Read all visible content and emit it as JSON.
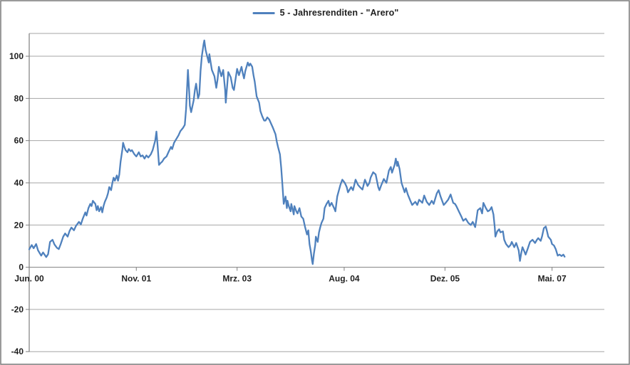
{
  "chart_data": {
    "type": "line",
    "title": "",
    "legend_label": "5 - Jahresrenditen - \"Arero\"",
    "legend_position": "top-center",
    "x_unit": "months since Jun 2000",
    "grid": true,
    "line_color": "#4f81bd",
    "grid_color": "#a6a6a6",
    "axis_color": "#7f7f7f",
    "border_color": "#818181",
    "text_color": "#1f1f1f",
    "ylim": [
      -40,
      110.8
    ],
    "xlim": [
      0,
      91.3
    ],
    "y_ticks": [
      100,
      80,
      60,
      40,
      20,
      0,
      -20,
      -40
    ],
    "x_ticks": [
      {
        "m": 0,
        "label": "Jun. 00"
      },
      {
        "m": 17,
        "label": "Nov. 01"
      },
      {
        "m": 33,
        "label": "Mrz. 03"
      },
      {
        "m": 50,
        "label": "Aug. 04"
      },
      {
        "m": 66,
        "label": "Dez. 05"
      },
      {
        "m": 83,
        "label": "Mai. 07"
      }
    ],
    "series": [
      {
        "name": "5 - Jahresrenditen - \"Arero\"",
        "points": [
          [
            0,
            8.5
          ],
          [
            0.4,
            10.5
          ],
          [
            0.7,
            9
          ],
          [
            1.1,
            11
          ],
          [
            1.4,
            8
          ],
          [
            1.9,
            5.5
          ],
          [
            2.2,
            7
          ],
          [
            2.7,
            4.8
          ],
          [
            3,
            6.2
          ],
          [
            3.3,
            12
          ],
          [
            3.7,
            13
          ],
          [
            4,
            10.8
          ],
          [
            4.4,
            9.2
          ],
          [
            4.7,
            8.6
          ],
          [
            5,
            11
          ],
          [
            5.4,
            14.5
          ],
          [
            5.7,
            16
          ],
          [
            6.1,
            14.5
          ],
          [
            6.4,
            17.2
          ],
          [
            6.7,
            18.8
          ],
          [
            7.1,
            17.5
          ],
          [
            7.4,
            19.5
          ],
          [
            7.9,
            21.5
          ],
          [
            8.2,
            20.3
          ],
          [
            8.5,
            23
          ],
          [
            8.9,
            26
          ],
          [
            9.1,
            24.5
          ],
          [
            9.4,
            28
          ],
          [
            9.7,
            30
          ],
          [
            9.9,
            29
          ],
          [
            10.1,
            31.5
          ],
          [
            10.5,
            30
          ],
          [
            10.7,
            27
          ],
          [
            10.9,
            29
          ],
          [
            11.1,
            26.5
          ],
          [
            11.4,
            28.5
          ],
          [
            11.6,
            26
          ],
          [
            11.8,
            29
          ],
          [
            12,
            31
          ],
          [
            12.3,
            33
          ],
          [
            12.5,
            35
          ],
          [
            12.7,
            38
          ],
          [
            13,
            36.5
          ],
          [
            13.2,
            40
          ],
          [
            13.4,
            42.4
          ],
          [
            13.6,
            41
          ],
          [
            13.9,
            43.5
          ],
          [
            14.1,
            41
          ],
          [
            14.3,
            44
          ],
          [
            14.5,
            50
          ],
          [
            14.8,
            56
          ],
          [
            14.9,
            59
          ],
          [
            15.1,
            57
          ],
          [
            15.3,
            55.5
          ],
          [
            15.6,
            54.5
          ],
          [
            15.8,
            56
          ],
          [
            16.1,
            55
          ],
          [
            16.3,
            55.5
          ],
          [
            16.7,
            53.5
          ],
          [
            17,
            52.5
          ],
          [
            17.4,
            54.5
          ],
          [
            17.7,
            52.5
          ],
          [
            18,
            53
          ],
          [
            18.3,
            51.5
          ],
          [
            18.6,
            53
          ],
          [
            18.9,
            52
          ],
          [
            19.3,
            53.5
          ],
          [
            19.6,
            55.5
          ],
          [
            20,
            60
          ],
          [
            20.2,
            64.3
          ],
          [
            20.4,
            57
          ],
          [
            20.6,
            48.5
          ],
          [
            20.9,
            49.5
          ],
          [
            21.1,
            50
          ],
          [
            21.4,
            51.5
          ],
          [
            21.8,
            52.5
          ],
          [
            22.1,
            54.5
          ],
          [
            22.5,
            57
          ],
          [
            22.7,
            56
          ],
          [
            23,
            59
          ],
          [
            23.4,
            61
          ],
          [
            23.7,
            62.5
          ],
          [
            24,
            64.5
          ],
          [
            24.4,
            66
          ],
          [
            24.7,
            67.5
          ],
          [
            24.9,
            75
          ],
          [
            25.2,
            93.5
          ],
          [
            25.4,
            83
          ],
          [
            25.5,
            76.5
          ],
          [
            25.7,
            73.5
          ],
          [
            26.1,
            79
          ],
          [
            26.3,
            84
          ],
          [
            26.5,
            87
          ],
          [
            26.8,
            80
          ],
          [
            27,
            82
          ],
          [
            27.2,
            93
          ],
          [
            27.4,
            100
          ],
          [
            27.7,
            106
          ],
          [
            27.8,
            107.5
          ],
          [
            28,
            103
          ],
          [
            28.2,
            100.5
          ],
          [
            28.5,
            97
          ],
          [
            28.6,
            101
          ],
          [
            28.8,
            97
          ],
          [
            29,
            93.5
          ],
          [
            29.4,
            90.5
          ],
          [
            29.7,
            85
          ],
          [
            29.9,
            89
          ],
          [
            30.1,
            95
          ],
          [
            30.5,
            90.5
          ],
          [
            30.8,
            93.5
          ],
          [
            31.1,
            84
          ],
          [
            31.2,
            78
          ],
          [
            31.4,
            85
          ],
          [
            31.6,
            92.5
          ],
          [
            32,
            90
          ],
          [
            32.3,
            85
          ],
          [
            32.5,
            84
          ],
          [
            32.7,
            88
          ],
          [
            33,
            94
          ],
          [
            33.3,
            91
          ],
          [
            33.7,
            95
          ],
          [
            33.9,
            92
          ],
          [
            34.1,
            89.5
          ],
          [
            34.3,
            93
          ],
          [
            34.7,
            97
          ],
          [
            34.9,
            95.5
          ],
          [
            35.1,
            96.5
          ],
          [
            35.4,
            95
          ],
          [
            35.6,
            91
          ],
          [
            35.8,
            88
          ],
          [
            36.1,
            81
          ],
          [
            36.5,
            78
          ],
          [
            36.7,
            74
          ],
          [
            37,
            71.5
          ],
          [
            37.3,
            69.5
          ],
          [
            37.5,
            69.5
          ],
          [
            37.8,
            71
          ],
          [
            38.1,
            70
          ],
          [
            38.4,
            68
          ],
          [
            38.7,
            66
          ],
          [
            39.1,
            63
          ],
          [
            39.3,
            59.5
          ],
          [
            39.5,
            57
          ],
          [
            39.8,
            53.5
          ],
          [
            40,
            47
          ],
          [
            40.2,
            39
          ],
          [
            40.3,
            34.5
          ],
          [
            40.4,
            30
          ],
          [
            40.7,
            33.5
          ],
          [
            40.9,
            28
          ],
          [
            41,
            31.5
          ],
          [
            41.2,
            29
          ],
          [
            41.5,
            26.5
          ],
          [
            41.6,
            30
          ],
          [
            41.8,
            27.5
          ],
          [
            42,
            25
          ],
          [
            42.1,
            29
          ],
          [
            42.4,
            26.5
          ],
          [
            42.6,
            25.5
          ],
          [
            42.9,
            28
          ],
          [
            43.2,
            24
          ],
          [
            43.5,
            23
          ],
          [
            43.8,
            19
          ],
          [
            44.1,
            15.5
          ],
          [
            44.3,
            17.5
          ],
          [
            44.5,
            11
          ],
          [
            44.7,
            7.5
          ],
          [
            44.9,
            3
          ],
          [
            45,
            1.5
          ],
          [
            45.2,
            6.5
          ],
          [
            45.4,
            10.5
          ],
          [
            45.5,
            14.5
          ],
          [
            45.8,
            12
          ],
          [
            46,
            16.5
          ],
          [
            46.2,
            19
          ],
          [
            46.4,
            21
          ],
          [
            46.7,
            23
          ],
          [
            46.9,
            28
          ],
          [
            47.2,
            30
          ],
          [
            47.5,
            31.5
          ],
          [
            47.7,
            29
          ],
          [
            48,
            30.5
          ],
          [
            48.4,
            28
          ],
          [
            48.6,
            26.5
          ],
          [
            48.9,
            33.5
          ],
          [
            49.4,
            39
          ],
          [
            49.7,
            41.5
          ],
          [
            50.1,
            40
          ],
          [
            50.4,
            38
          ],
          [
            50.6,
            35.5
          ],
          [
            51.1,
            38
          ],
          [
            51.4,
            36.5
          ],
          [
            51.8,
            41.5
          ],
          [
            52.2,
            39
          ],
          [
            52.5,
            38
          ],
          [
            52.9,
            36.8
          ],
          [
            53.3,
            41.5
          ],
          [
            53.7,
            38.5
          ],
          [
            54,
            40
          ],
          [
            54.2,
            42.5
          ],
          [
            54.6,
            45
          ],
          [
            55,
            44
          ],
          [
            55.4,
            38
          ],
          [
            55.6,
            36.5
          ],
          [
            55.9,
            39
          ],
          [
            56.3,
            41.8
          ],
          [
            56.7,
            40
          ],
          [
            57.1,
            45.8
          ],
          [
            57.4,
            47.5
          ],
          [
            57.6,
            44.8
          ],
          [
            58,
            48.5
          ],
          [
            58.2,
            51.5
          ],
          [
            58.4,
            48
          ],
          [
            58.5,
            50
          ],
          [
            58.8,
            46.5
          ],
          [
            59.1,
            40
          ],
          [
            59.6,
            35.5
          ],
          [
            59.8,
            37.5
          ],
          [
            60.1,
            34.5
          ],
          [
            60.5,
            31.5
          ],
          [
            60.8,
            29.5
          ],
          [
            61.3,
            31
          ],
          [
            61.6,
            29.5
          ],
          [
            61.9,
            32
          ],
          [
            62.4,
            30.5
          ],
          [
            62.7,
            34
          ],
          [
            63.1,
            31
          ],
          [
            63.5,
            29.5
          ],
          [
            63.9,
            31.5
          ],
          [
            64.2,
            30
          ],
          [
            64.7,
            35
          ],
          [
            65,
            36.5
          ],
          [
            65.3,
            33.5
          ],
          [
            65.8,
            29.5
          ],
          [
            66.1,
            30.5
          ],
          [
            66.5,
            32
          ],
          [
            66.9,
            34.5
          ],
          [
            67.3,
            30.5
          ],
          [
            67.6,
            30
          ],
          [
            67.8,
            29
          ],
          [
            68.2,
            26.5
          ],
          [
            68.6,
            24
          ],
          [
            68.9,
            22
          ],
          [
            69.3,
            23
          ],
          [
            69.7,
            21
          ],
          [
            70.1,
            20
          ],
          [
            70.4,
            21.5
          ],
          [
            70.8,
            19
          ],
          [
            71,
            23
          ],
          [
            71.2,
            27
          ],
          [
            71.6,
            28
          ],
          [
            71.9,
            25.5
          ],
          [
            72.1,
            30.5
          ],
          [
            72.5,
            28
          ],
          [
            72.8,
            26.5
          ],
          [
            73.1,
            27
          ],
          [
            73.4,
            28.5
          ],
          [
            73.7,
            25
          ],
          [
            73.9,
            19
          ],
          [
            74,
            14.5
          ],
          [
            74.3,
            17
          ],
          [
            74.6,
            18
          ],
          [
            74.8,
            16.5
          ],
          [
            75.2,
            17
          ],
          [
            75.4,
            13
          ],
          [
            75.7,
            11
          ],
          [
            76.1,
            9.5
          ],
          [
            76.4,
            10.5
          ],
          [
            76.6,
            12
          ],
          [
            77,
            9.5
          ],
          [
            77.3,
            11.5
          ],
          [
            77.7,
            8
          ],
          [
            77.9,
            3
          ],
          [
            78.1,
            6.5
          ],
          [
            78.3,
            9.5
          ],
          [
            78.6,
            7.5
          ],
          [
            78.8,
            6
          ],
          [
            79.1,
            8.5
          ],
          [
            79.5,
            12
          ],
          [
            79.9,
            13
          ],
          [
            80.3,
            11.5
          ],
          [
            80.6,
            13
          ],
          [
            80.8,
            13.8
          ],
          [
            81.2,
            12.5
          ],
          [
            81.4,
            14.5
          ],
          [
            81.7,
            18.5
          ],
          [
            82,
            19.3
          ],
          [
            82.2,
            17
          ],
          [
            82.4,
            14.5
          ],
          [
            82.8,
            13
          ],
          [
            83,
            11
          ],
          [
            83.3,
            10.3
          ],
          [
            83.6,
            8.5
          ],
          [
            83.9,
            5.5
          ],
          [
            84.2,
            6
          ],
          [
            84.5,
            5.3
          ],
          [
            84.8,
            6
          ],
          [
            85,
            5
          ]
        ]
      }
    ]
  }
}
